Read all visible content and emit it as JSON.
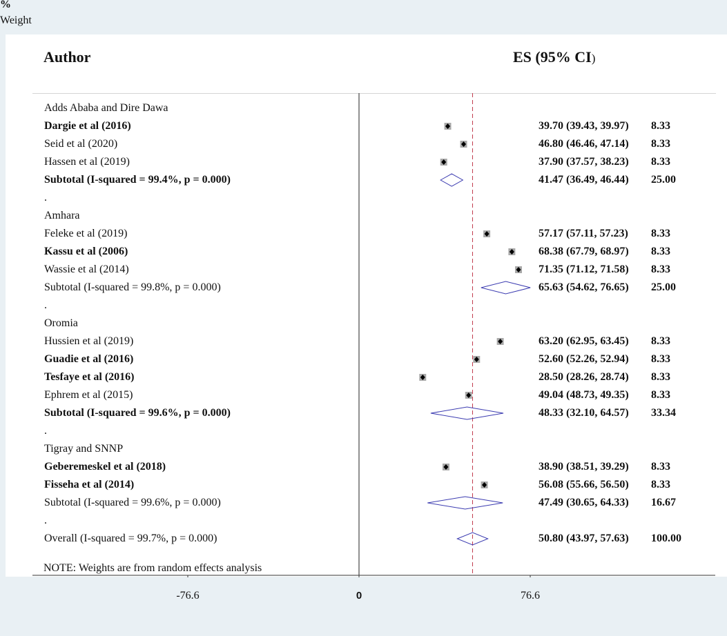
{
  "header": {
    "author": "Author",
    "es": "ES (95% CI",
    "es_paren": ")",
    "weight_pct": "%",
    "weight_label": "Weight"
  },
  "chart_data": {
    "type": "forest",
    "null_line": 0,
    "overall_line": 50.8,
    "xticks": [
      -76.6,
      0,
      76.6
    ],
    "xtick_labels": [
      "-76.6",
      "0",
      "76.6"
    ],
    "note": "NOTE: Weights are from random effects analysis",
    "rows": [
      {
        "kind": "group",
        "label": "Adds Ababa and Dire Dawa"
      },
      {
        "kind": "study",
        "label": "Dargie et al (2016)",
        "bold": true,
        "es": 39.7,
        "lo": 39.43,
        "hi": 39.97,
        "es_text": "39.70 (39.43, 39.97)",
        "weight": "8.33"
      },
      {
        "kind": "study",
        "label": "Seid et al (2020)",
        "bold": false,
        "es": 46.8,
        "lo": 46.46,
        "hi": 47.14,
        "es_text": "46.80 (46.46, 47.14)",
        "weight": "8.33"
      },
      {
        "kind": "study",
        "label": "Hassen et al (2019)",
        "bold": false,
        "es": 37.9,
        "lo": 37.57,
        "hi": 38.23,
        "es_text": "37.90 (37.57, 38.23)",
        "weight": "8.33"
      },
      {
        "kind": "subtotal",
        "label": "Subtotal  (I-squared = 99.4%, p = 0.000)",
        "bold": true,
        "es": 41.47,
        "lo": 36.49,
        "hi": 46.44,
        "es_text": "41.47 (36.49, 46.44)",
        "weight": "25.00"
      },
      {
        "kind": "spacer",
        "label": "."
      },
      {
        "kind": "group",
        "label": "Amhara"
      },
      {
        "kind": "study",
        "label": "Feleke et al (2019)",
        "bold": false,
        "es": 57.17,
        "lo": 57.11,
        "hi": 57.23,
        "es_text": "57.17 (57.11, 57.23)",
        "weight": "8.33"
      },
      {
        "kind": "study",
        "label": "Kassu et al (2006)",
        "bold": true,
        "es": 68.38,
        "lo": 67.79,
        "hi": 68.97,
        "es_text": "68.38 (67.79, 68.97)",
        "weight": "8.33"
      },
      {
        "kind": "study",
        "label": "Wassie et al (2014)",
        "bold": false,
        "es": 71.35,
        "lo": 71.12,
        "hi": 71.58,
        "es_text": "71.35 (71.12, 71.58)",
        "weight": "8.33"
      },
      {
        "kind": "subtotal",
        "label": "Subtotal  (I-squared = 99.8%, p = 0.000)",
        "bold": false,
        "es": 65.63,
        "lo": 54.62,
        "hi": 76.65,
        "es_text": "65.63 (54.62, 76.65)",
        "weight": "25.00"
      },
      {
        "kind": "spacer",
        "label": "."
      },
      {
        "kind": "group",
        "label": "Oromia"
      },
      {
        "kind": "study",
        "label": "Hussien et al (2019)",
        "bold": false,
        "es": 63.2,
        "lo": 62.95,
        "hi": 63.45,
        "es_text": "63.20 (62.95, 63.45)",
        "weight": "8.33"
      },
      {
        "kind": "study",
        "label": "Guadie et al (2016)",
        "bold": true,
        "es": 52.6,
        "lo": 52.26,
        "hi": 52.94,
        "es_text": "52.60 (52.26, 52.94)",
        "weight": "8.33"
      },
      {
        "kind": "study",
        "label": "Tesfaye et al (2016)",
        "bold": true,
        "es": 28.5,
        "lo": 28.26,
        "hi": 28.74,
        "es_text": "28.50 (28.26, 28.74)",
        "weight": "8.33"
      },
      {
        "kind": "study",
        "label": "Ephrem et al (2015)",
        "bold": false,
        "es": 49.04,
        "lo": 48.73,
        "hi": 49.35,
        "es_text": "49.04 (48.73, 49.35)",
        "weight": "8.33"
      },
      {
        "kind": "subtotal",
        "label": "Subtotal  (I-squared = 99.6%, p = 0.000)",
        "bold": true,
        "es": 48.33,
        "lo": 32.1,
        "hi": 64.57,
        "es_text": "48.33 (32.10, 64.57)",
        "weight": "33.34"
      },
      {
        "kind": "spacer",
        "label": "."
      },
      {
        "kind": "group",
        "label": "Tigray and SNNP"
      },
      {
        "kind": "study",
        "label": "Geberemeskel et al (2018)",
        "bold": true,
        "es": 38.9,
        "lo": 38.51,
        "hi": 39.29,
        "es_text": "38.90 (38.51, 39.29)",
        "weight": "8.33"
      },
      {
        "kind": "study",
        "label": "Fisseha et al (2014)",
        "bold": true,
        "es": 56.08,
        "lo": 55.66,
        "hi": 56.5,
        "es_text": "56.08 (55.66, 56.50)",
        "weight": "8.33"
      },
      {
        "kind": "subtotal",
        "label": "Subtotal  (I-squared = 99.6%, p = 0.000)",
        "bold": false,
        "es": 47.49,
        "lo": 30.65,
        "hi": 64.33,
        "es_text": "47.49 (30.65, 64.33)",
        "weight": "16.67"
      },
      {
        "kind": "spacer",
        "label": "."
      },
      {
        "kind": "overall",
        "label": "Overall  (I-squared = 99.7%, p = 0.000)",
        "bold": false,
        "es": 50.8,
        "lo": 43.97,
        "hi": 57.63,
        "es_text": "50.80 (43.97, 57.63)",
        "weight": "100.00"
      }
    ]
  }
}
